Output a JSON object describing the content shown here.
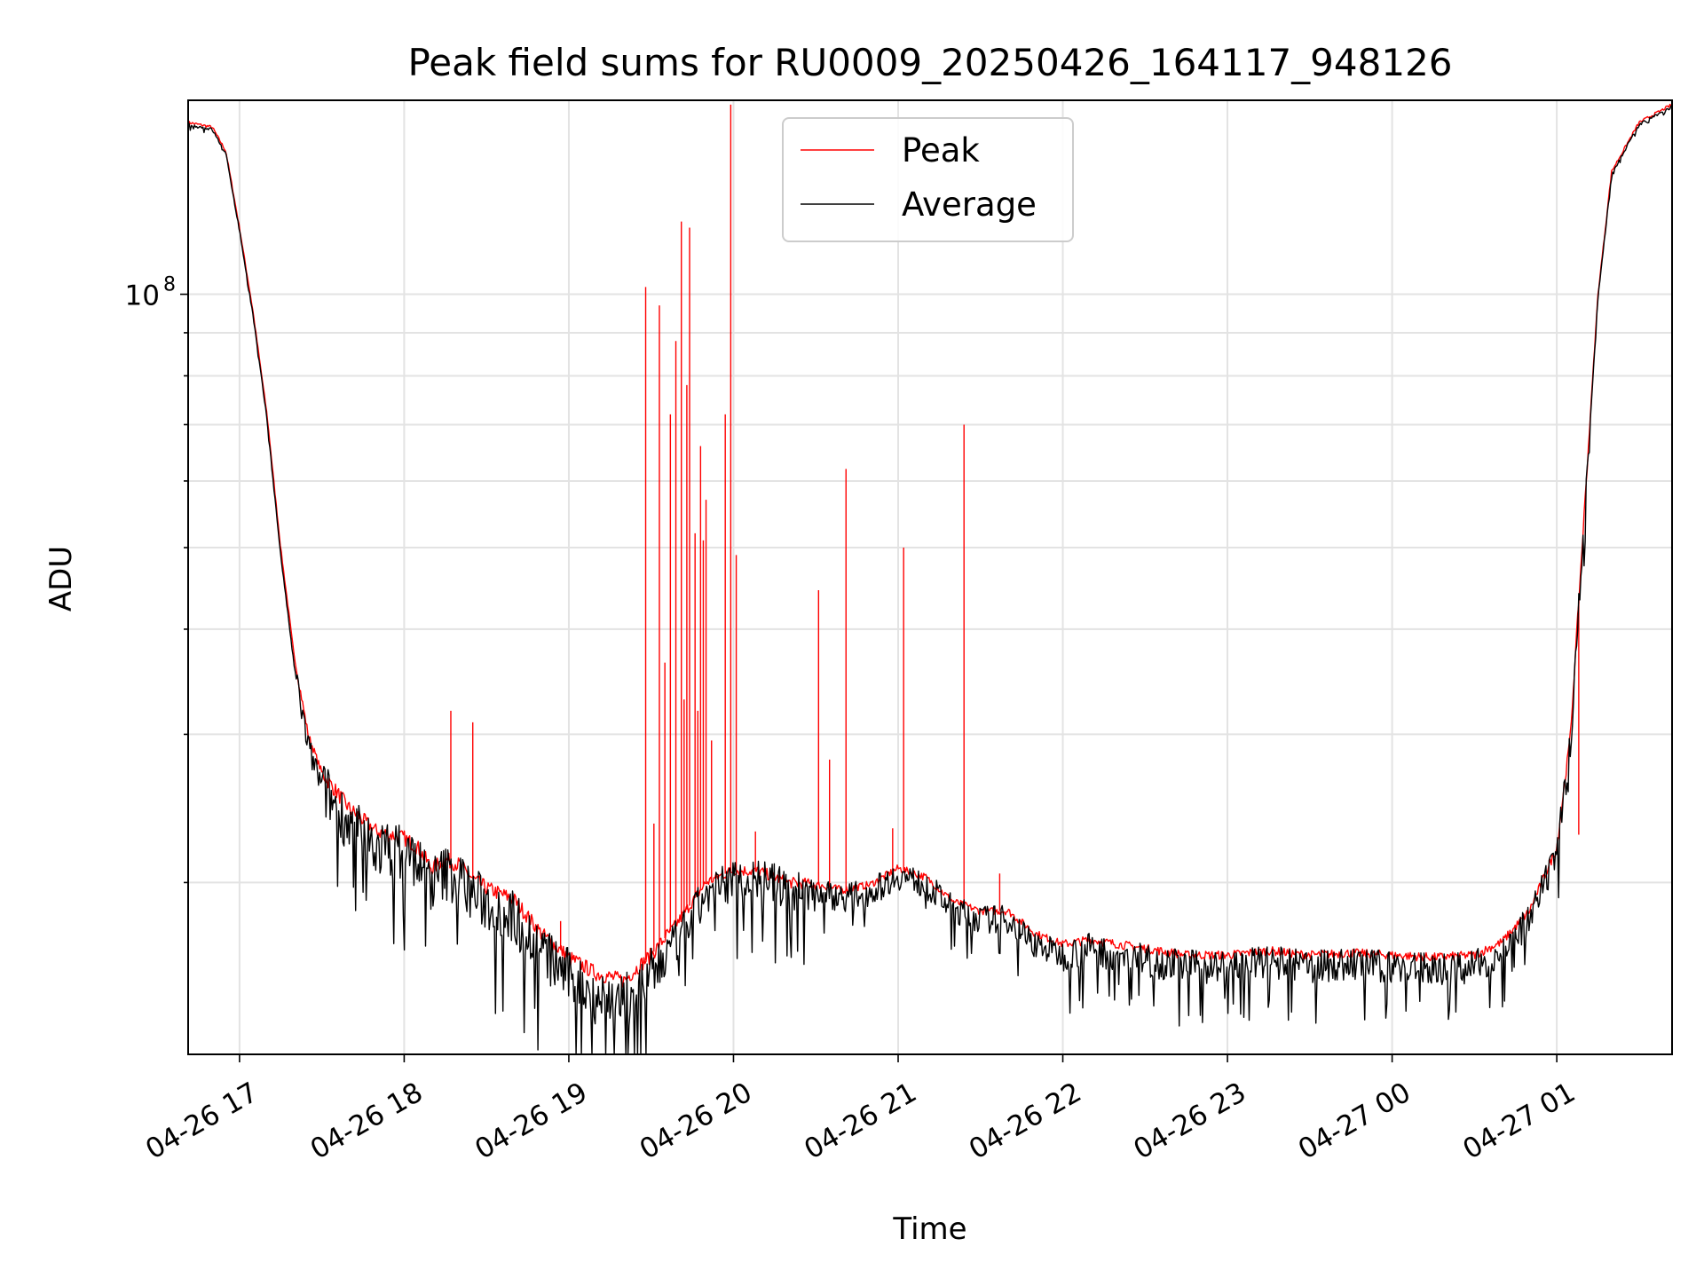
{
  "chart_data": {
    "type": "line",
    "title": "Peak field sums for RU0009_20250426_164117_948126",
    "xlabel": "Time",
    "ylabel": "ADU",
    "y_scale": "log",
    "ylim": [
      12500000,
      170000000
    ],
    "xlim": [
      "2025-04-26 16:41:17",
      "2025-04-27 01:42:00"
    ],
    "x_ticks": [
      "04-26 17",
      "04-26 18",
      "04-26 19",
      "04-26 20",
      "04-26 21",
      "04-26 22",
      "04-26 23",
      "04-27 00",
      "04-27 01"
    ],
    "y_ticks": [
      {
        "label": "10",
        "sup": "8",
        "value": 100000000
      }
    ],
    "grid": true,
    "legend_position": "top-center",
    "series": [
      {
        "name": "Peak",
        "color": "#ff0000",
        "baseline": [
          [
            "2025-04-26 16:41:17",
            160000000
          ],
          [
            "2025-04-26 16:50",
            158000000
          ],
          [
            "2025-04-26 16:55",
            148000000
          ],
          [
            "2025-04-26 17:00",
            120000000
          ],
          [
            "2025-04-26 17:05",
            95000000
          ],
          [
            "2025-04-26 17:10",
            72000000
          ],
          [
            "2025-04-26 17:15",
            50000000
          ],
          [
            "2025-04-26 17:20",
            37000000
          ],
          [
            "2025-04-26 17:25",
            30000000
          ],
          [
            "2025-04-26 17:30",
            27000000
          ],
          [
            "2025-04-26 17:40",
            24500000
          ],
          [
            "2025-04-26 17:50",
            23000000
          ],
          [
            "2025-04-26 18:00",
            22600000
          ],
          [
            "2025-04-26 18:05",
            22000000
          ],
          [
            "2025-04-26 18:10",
            20800000
          ],
          [
            "2025-04-26 18:15",
            21300000
          ],
          [
            "2025-04-26 18:20",
            21000000
          ],
          [
            "2025-04-26 18:25",
            20200000
          ],
          [
            "2025-04-26 18:30",
            19700000
          ],
          [
            "2025-04-26 18:40",
            19100000
          ],
          [
            "2025-04-26 18:50",
            17400000
          ],
          [
            "2025-04-26 19:00",
            16300000
          ],
          [
            "2025-04-26 19:10",
            15600000
          ],
          [
            "2025-04-26 19:20",
            15300000
          ],
          [
            "2025-04-26 19:30",
            16400000
          ],
          [
            "2025-04-26 19:40",
            18000000
          ],
          [
            "2025-04-26 19:50",
            20000000
          ],
          [
            "2025-04-26 20:00",
            20700000
          ],
          [
            "2025-04-26 20:10",
            20600000
          ],
          [
            "2025-04-26 20:20",
            20000000
          ],
          [
            "2025-04-26 20:30",
            19900000
          ],
          [
            "2025-04-26 20:40",
            19600000
          ],
          [
            "2025-04-26 20:50",
            19900000
          ],
          [
            "2025-04-26 21:00",
            20800000
          ],
          [
            "2025-04-26 21:10",
            20300000
          ],
          [
            "2025-04-26 21:20",
            19000000
          ],
          [
            "2025-04-26 21:30",
            18500000
          ],
          [
            "2025-04-26 21:40",
            18500000
          ],
          [
            "2025-04-26 21:50",
            17400000
          ],
          [
            "2025-04-26 22:00",
            16900000
          ],
          [
            "2025-04-26 22:10",
            17100000
          ],
          [
            "2025-04-26 22:20",
            16900000
          ],
          [
            "2025-04-26 22:30",
            16700000
          ],
          [
            "2025-04-26 22:45",
            16400000
          ],
          [
            "2025-04-26 23:00",
            16400000
          ],
          [
            "2025-04-26 23:15",
            16600000
          ],
          [
            "2025-04-26 23:30",
            16400000
          ],
          [
            "2025-04-26 23:45",
            16500000
          ],
          [
            "2025-04-27 00:00",
            16400000
          ],
          [
            "2025-04-27 00:15",
            16300000
          ],
          [
            "2025-04-27 00:30",
            16400000
          ],
          [
            "2025-04-27 00:40",
            17000000
          ],
          [
            "2025-04-27 00:50",
            18500000
          ],
          [
            "2025-04-27 01:00",
            22000000
          ],
          [
            "2025-04-27 01:05",
            30000000
          ],
          [
            "2025-04-27 01:10",
            55000000
          ],
          [
            "2025-04-27 01:15",
            100000000
          ],
          [
            "2025-04-27 01:20",
            140000000
          ],
          [
            "2025-04-27 01:30",
            160000000
          ],
          [
            "2025-04-27 01:42",
            168000000
          ]
        ],
        "spikes": [
          [
            "2025-04-26 18:17",
            32000000
          ],
          [
            "2025-04-26 18:25",
            31000000
          ],
          [
            "2025-04-26 18:57",
            18000000
          ],
          [
            "2025-04-26 19:28",
            102000000
          ],
          [
            "2025-04-26 19:31",
            23500000
          ],
          [
            "2025-04-26 19:33",
            97000000
          ],
          [
            "2025-04-26 19:35",
            36500000
          ],
          [
            "2025-04-26 19:37",
            72000000
          ],
          [
            "2025-04-26 19:39",
            88000000
          ],
          [
            "2025-04-26 19:41",
            122000000
          ],
          [
            "2025-04-26 19:42",
            33000000
          ],
          [
            "2025-04-26 19:43",
            78000000
          ],
          [
            "2025-04-26 19:44",
            120000000
          ],
          [
            "2025-04-26 19:46",
            52000000
          ],
          [
            "2025-04-26 19:47",
            32000000
          ],
          [
            "2025-04-26 19:48",
            66000000
          ],
          [
            "2025-04-26 19:49",
            51000000
          ],
          [
            "2025-04-26 19:50",
            57000000
          ],
          [
            "2025-04-26 19:52",
            29500000
          ],
          [
            "2025-04-26 19:57",
            72000000
          ],
          [
            "2025-04-26 19:59",
            168000000
          ],
          [
            "2025-04-26 20:01",
            49000000
          ],
          [
            "2025-04-26 20:08",
            23000000
          ],
          [
            "2025-04-26 20:31",
            44500000
          ],
          [
            "2025-04-26 20:35",
            28000000
          ],
          [
            "2025-04-26 20:41",
            62000000
          ],
          [
            "2025-04-26 20:58",
            23200000
          ],
          [
            "2025-04-26 21:02",
            50000000
          ],
          [
            "2025-04-26 21:24",
            70000000
          ],
          [
            "2025-04-26 21:37",
            20500000
          ],
          [
            "2025-04-27 01:08",
            22800000
          ]
        ]
      },
      {
        "name": "Average",
        "color": "#000000",
        "baseline": [
          [
            "2025-04-26 16:41:17",
            159000000
          ],
          [
            "2025-04-26 16:50",
            157000000
          ],
          [
            "2025-04-26 16:55",
            147000000
          ],
          [
            "2025-04-26 17:00",
            119000000
          ],
          [
            "2025-04-26 17:05",
            94000000
          ],
          [
            "2025-04-26 17:10",
            71000000
          ],
          [
            "2025-04-26 17:15",
            49000000
          ],
          [
            "2025-04-26 17:20",
            36000000
          ],
          [
            "2025-04-26 17:25",
            29000000
          ],
          [
            "2025-04-26 17:30",
            26000000
          ],
          [
            "2025-04-26 17:40",
            23500000
          ],
          [
            "2025-04-26 17:50",
            22000000
          ],
          [
            "2025-04-26 18:00",
            21800000
          ],
          [
            "2025-04-26 18:05",
            21200000
          ],
          [
            "2025-04-26 18:10",
            20000000
          ],
          [
            "2025-04-26 18:15",
            20600000
          ],
          [
            "2025-04-26 18:20",
            20300000
          ],
          [
            "2025-04-26 18:25",
            19400000
          ],
          [
            "2025-04-26 18:30",
            18900000
          ],
          [
            "2025-04-26 18:40",
            18200000
          ],
          [
            "2025-04-26 18:50",
            16600000
          ],
          [
            "2025-04-26 19:00",
            15500000
          ],
          [
            "2025-04-26 19:10",
            14700000
          ],
          [
            "2025-04-26 19:20",
            14400000
          ],
          [
            "2025-04-26 19:30",
            15500000
          ],
          [
            "2025-04-26 19:40",
            17200000
          ],
          [
            "2025-04-26 19:50",
            19300000
          ],
          [
            "2025-04-26 20:00",
            20200000
          ],
          [
            "2025-04-26 20:10",
            20200000
          ],
          [
            "2025-04-26 20:20",
            19600000
          ],
          [
            "2025-04-26 20:30",
            19500000
          ],
          [
            "2025-04-26 20:40",
            19200000
          ],
          [
            "2025-04-26 20:50",
            19500000
          ],
          [
            "2025-04-26 21:00",
            20400000
          ],
          [
            "2025-04-26 21:10",
            19900000
          ],
          [
            "2025-04-26 21:20",
            18600000
          ],
          [
            "2025-04-26 21:30",
            18100000
          ],
          [
            "2025-04-26 21:40",
            18100000
          ],
          [
            "2025-04-26 21:50",
            16900000
          ],
          [
            "2025-04-26 22:00",
            16400000
          ],
          [
            "2025-04-26 22:10",
            16700000
          ],
          [
            "2025-04-26 22:20",
            16400000
          ],
          [
            "2025-04-26 22:30",
            16200000
          ],
          [
            "2025-04-26 22:45",
            15900000
          ],
          [
            "2025-04-26 23:00",
            15900000
          ],
          [
            "2025-04-26 23:15",
            16100000
          ],
          [
            "2025-04-26 23:30",
            15900000
          ],
          [
            "2025-04-26 23:45",
            16000000
          ],
          [
            "2025-04-27 00:00",
            15900000
          ],
          [
            "2025-04-27 00:15",
            15800000
          ],
          [
            "2025-04-27 00:30",
            15900000
          ],
          [
            "2025-04-27 00:40",
            16500000
          ],
          [
            "2025-04-27 00:50",
            18000000
          ],
          [
            "2025-04-27 01:00",
            21500000
          ],
          [
            "2025-04-27 01:05",
            29500000
          ],
          [
            "2025-04-27 01:10",
            54000000
          ],
          [
            "2025-04-27 01:15",
            99000000
          ],
          [
            "2025-04-27 01:20",
            139000000
          ],
          [
            "2025-04-27 01:30",
            159000000
          ],
          [
            "2025-04-27 01:42",
            167000000
          ]
        ]
      }
    ]
  }
}
